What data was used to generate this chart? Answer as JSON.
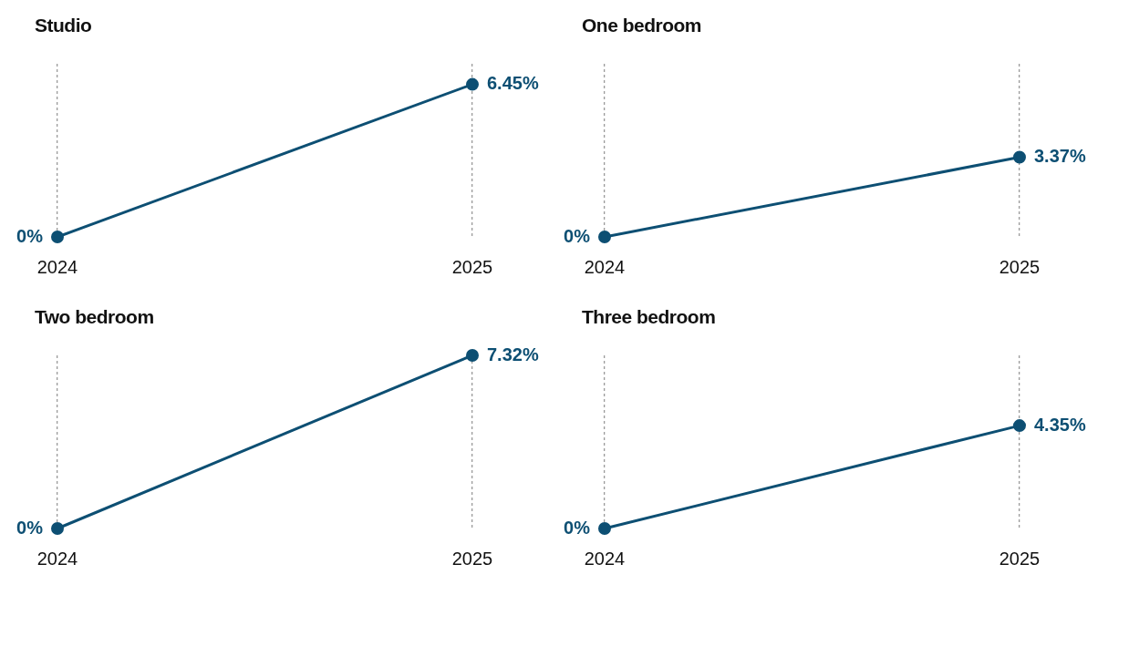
{
  "chart_data": [
    {
      "type": "line",
      "title": "Studio",
      "categories": [
        "2024",
        "2025"
      ],
      "values": [
        0,
        6.45
      ],
      "value_labels": [
        "0%",
        "6.45%"
      ],
      "color": "#0d4f73",
      "marker": "circle",
      "grid": "x",
      "tick_labels": "x"
    },
    {
      "type": "line",
      "title": "One bedroom",
      "categories": [
        "2024",
        "2025"
      ],
      "values": [
        0,
        3.37
      ],
      "value_labels": [
        "0%",
        "3.37%"
      ],
      "color": "#0d4f73",
      "marker": "circle",
      "grid": "x",
      "tick_labels": "x"
    },
    {
      "type": "line",
      "title": "Two bedroom",
      "categories": [
        "2024",
        "2025"
      ],
      "values": [
        0,
        7.32
      ],
      "value_labels": [
        "0%",
        "7.32%"
      ],
      "color": "#0d4f73",
      "marker": "circle",
      "grid": "x",
      "tick_labels": "x"
    },
    {
      "type": "line",
      "title": "Three bedroom",
      "categories": [
        "2024",
        "2025"
      ],
      "values": [
        0,
        4.35
      ],
      "value_labels": [
        "0%",
        "4.35%"
      ],
      "color": "#0d4f73",
      "marker": "circle",
      "grid": "x",
      "tick_labels": "x"
    }
  ]
}
